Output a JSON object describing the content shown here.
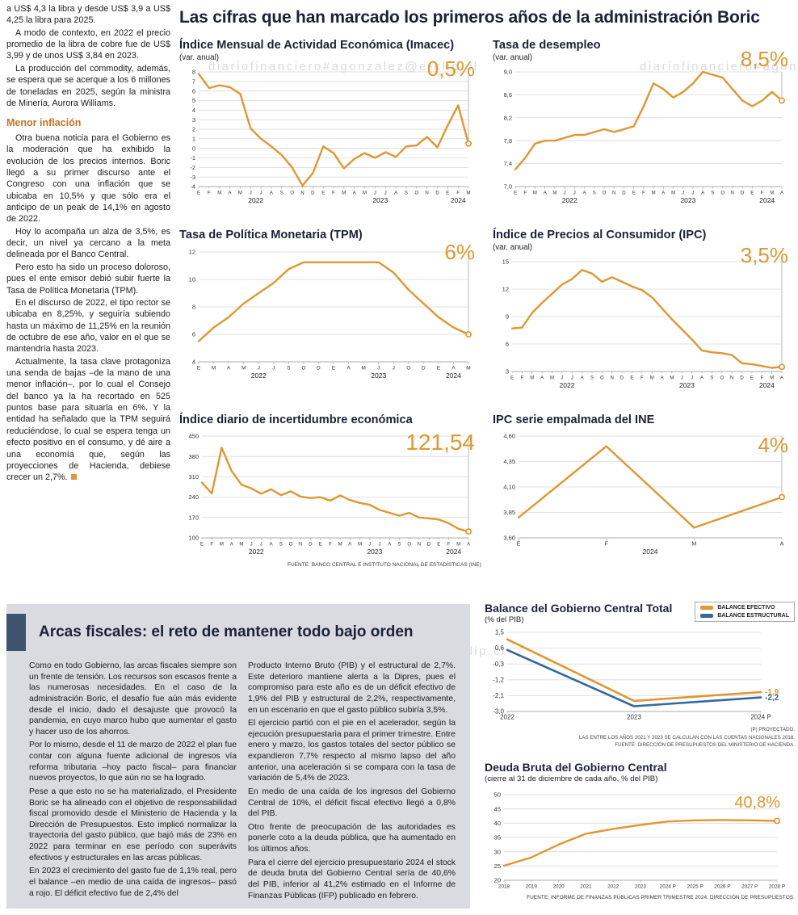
{
  "meta": {
    "watermark": "diariofinanciero#agonzalez@e-clip.cl"
  },
  "article": {
    "intro_paragraphs": [
      "a US$ 4,3 la libra y desde US$ 3,9 a US$ 4,25 la libra para 2025.",
      "A modo de contexto, en 2022 el precio promedio de la libra de cobre fue de US$ 3,99 y de unos US$ 3,84 en 2023.",
      "La producción del commodity, además, se espera que se acerque a los 6 millones de toneladas en 2025, según la ministra de Minería, Aurora Williams."
    ],
    "subhead": "Menor inflación",
    "body_paragraphs": [
      "Otra buena noticia para el Gobierno es la moderación que ha exhibido la evolución de los precios internos. Boric llegó a su primer discurso ante el Congreso con una inflación que se ubicaba en 10,5% y que sólo era el anticipo de un peak de 14,1% en agosto de 2022.",
      "Hoy lo acompaña un alza de 3,5%, es decir, un nivel ya cercano a la meta delineada por el Banco Central.",
      "Pero esto ha sido un proceso doloroso, pues el ente emisor debió subir fuerte la Tasa de Política Monetaria (TPM).",
      "En el discurso de 2022, el tipo rector se ubicaba en 8,25%, y seguiría subiendo hasta un máximo de 11,25% en la reunión de octubre de ese año, valor en el que se mantendría hasta 2023.",
      "Actualmente, la tasa clave protagoniza una senda de bajas –de la mano de una menor inflación–, por lo cual el Consejo del banco ya la ha recortado en 525 puntos base para situarla en 6%. Y la entidad ha señalado que la TPM seguirá reduciéndose, lo cual se espera tenga un efecto positivo en el consumo, y dé aire a una economía que, según las proyecciones de Hacienda, debiese crecer un 2,7%."
    ]
  },
  "main_title": "Las cifras que han marcado los primeros años de la administración Boric",
  "fiscal": {
    "title": "Arcas fiscales: el reto de mantener todo bajo orden",
    "col1": [
      "Como en todo Gobierno, las arcas fiscales siempre son un frente de tensión. Los recursos son escasos frente a las numerosas necesidades. En el caso de la administración Boric, el desafío fue aún más evidente desde el inicio, dado el desajuste que provocó la pandemia, en cuyo marco hubo que aumentar el gasto y hacer uso de los ahorros.",
      "Por lo mismo, desde el 11 de marzo de 2022 el plan fue contar con alguna fuente adicional de ingresos vía reforma tributaria –hoy pacto fiscal– para financiar nuevos proyectos, lo que aún no se ha logrado.",
      "Pese a que esto no se ha materializado, el Presidente Boric se ha alineado con el objetivo de responsabilidad fiscal promovido desde el Ministerio de Hacienda y la Dirección de Presupuestos. Esto implicó normalizar la trayectoria del gasto público, que bajó más de 23% en 2022 para terminar en ese período con superávits efectivos y estructurales en las arcas públicas.",
      "En 2023 el crecimiento del gasto fue de 1,1% real, pero el balance –en medio de una caída de ingresos– pasó a rojo. El déficit efectivo fue de 2,4% del"
    ],
    "col2": [
      "Producto Interno Bruto (PIB) y el estructural de 2,7%. Este deterioro mantiene alerta a la Dipres, pues el compromiso para este año es de un déficit efectivo de 1,9% del PIB y estructural de 2,2%, respectivamente, en un escenario en que el gasto público subiría 3,5%.",
      "El ejercicio partió con el pie en el acelerador, según la ejecución presupuestaria para el primer trimestre. Entre enero y marzo, los gastos totales del sector público se expandieron 7,7% respecto al mismo lapso del año anterior, una aceleración si se compara con la tasa de variación de 5,4% de 2023.",
      "En medio de una caída de los ingresos del Gobierno Central de 10%, el déficit fiscal efectivo llegó a 0,8% del PIB.",
      "Otro frente de preocupación de las autoridades es ponerle coto a la deuda pública, que ha aumentado en los últimos años.",
      "Para el cierre del ejercicio presupuestario 2024 el stock de deuda bruta del Gobierno Central sería de 40,6% del PIB, inferior al 41,2% estimado en el Informe de Finanzas Públicas (IFP) publicado en febrero."
    ]
  },
  "chart_data": [
    {
      "id": "imacec",
      "type": "line",
      "title": "Índice Mensual de Actividad Económica (Imacec)",
      "subtitle": "(var. anual)",
      "callout": "0,5%",
      "ylim": [
        -4,
        8
      ],
      "y_ticks": [
        {
          "v": 8,
          "label": "8"
        },
        {
          "v": 7,
          "label": "7"
        },
        {
          "v": 6,
          "label": "6"
        },
        {
          "v": 5,
          "label": "5"
        },
        {
          "v": 4,
          "label": "4"
        },
        {
          "v": 3,
          "label": "3"
        },
        {
          "v": 2,
          "label": "2"
        },
        {
          "v": 1,
          "label": "1"
        },
        {
          "v": 0,
          "label": "0"
        },
        {
          "v": -1,
          "label": "-1"
        },
        {
          "v": -2,
          "label": "-2"
        },
        {
          "v": -3,
          "label": "-3"
        },
        {
          "v": -4,
          "label": "-4"
        }
      ],
      "x_labels": [
        "E",
        "F",
        "M",
        "A",
        "M",
        "J",
        "J",
        "A",
        "S",
        "O",
        "N",
        "D",
        "E",
        "F",
        "M",
        "A",
        "M",
        "J",
        "J",
        "A",
        "S",
        "O",
        "N",
        "D",
        "E",
        "F",
        "M"
      ],
      "year_spans": [
        {
          "label": "2022",
          "from": 0,
          "to": 11
        },
        {
          "label": "2023",
          "from": 12,
          "to": 23
        },
        {
          "label": "2024",
          "from": 24,
          "to": 26
        }
      ],
      "series": [
        {
          "name": "Imacec",
          "color": "#E2962F",
          "values": [
            7.8,
            6.3,
            6.6,
            6.4,
            5.7,
            2.1,
            1.0,
            0.2,
            -0.7,
            -2.0,
            -3.9,
            -2.6,
            0.2,
            -0.5,
            -2.1,
            -1.1,
            -0.5,
            -1.0,
            -0.4,
            -0.9,
            0.2,
            0.3,
            1.2,
            0.1,
            2.4,
            4.5,
            0.5
          ]
        }
      ],
      "end_marker": true,
      "drop_line": true,
      "source": ""
    },
    {
      "id": "desempleo",
      "type": "line",
      "title": "Tasa de desempleo",
      "subtitle": "(var. anual)",
      "callout": "8,5%",
      "ylim": [
        7.0,
        9.0
      ],
      "y_ticks": [
        {
          "v": 9.0,
          "label": "9,0"
        },
        {
          "v": 8.6,
          "label": "8,6"
        },
        {
          "v": 8.2,
          "label": "8,2"
        },
        {
          "v": 7.8,
          "label": "7,8"
        },
        {
          "v": 7.4,
          "label": "7,4"
        },
        {
          "v": 7.0,
          "label": "7,0"
        }
      ],
      "x_labels": [
        "E",
        "F",
        "M",
        "A",
        "M",
        "J",
        "J",
        "A",
        "S",
        "O",
        "N",
        "D",
        "E",
        "F",
        "M",
        "A",
        "M",
        "J",
        "J",
        "A",
        "S",
        "O",
        "N",
        "D",
        "E",
        "F",
        "M",
        "A"
      ],
      "year_spans": [
        {
          "label": "2022",
          "from": 0,
          "to": 11
        },
        {
          "label": "2023",
          "from": 12,
          "to": 23
        },
        {
          "label": "2024",
          "from": 24,
          "to": 27
        }
      ],
      "series": [
        {
          "name": "Tasa de desempleo",
          "color": "#E2962F",
          "values": [
            7.3,
            7.5,
            7.75,
            7.8,
            7.8,
            7.85,
            7.9,
            7.9,
            7.95,
            8.0,
            7.95,
            8.0,
            8.05,
            8.4,
            8.8,
            8.7,
            8.55,
            8.65,
            8.8,
            9.0,
            8.95,
            8.9,
            8.7,
            8.5,
            8.4,
            8.5,
            8.65,
            8.5
          ]
        }
      ],
      "end_marker": true,
      "drop_line": true,
      "source": ""
    },
    {
      "id": "tpm",
      "type": "line",
      "title": "Tasa de Política Monetaria (TPM)",
      "subtitle": "",
      "callout": "6%",
      "ylim": [
        4,
        12
      ],
      "y_ticks": [
        {
          "v": 12,
          "label": "12"
        },
        {
          "v": 10,
          "label": "10"
        },
        {
          "v": 8,
          "label": "8"
        },
        {
          "v": 6,
          "label": "6"
        },
        {
          "v": 4,
          "label": "4"
        }
      ],
      "x_labels": [
        "E",
        "M",
        "A",
        "M",
        "J",
        "J",
        "S",
        "O",
        "D",
        "E",
        "A",
        "M",
        "J",
        "J",
        "O",
        "D",
        "E",
        "A",
        "M"
      ],
      "year_spans": [
        {
          "label": "2022",
          "from": 0,
          "to": 8
        },
        {
          "label": "2023",
          "from": 9,
          "to": 15
        },
        {
          "label": "2024",
          "from": 16,
          "to": 18
        }
      ],
      "series": [
        {
          "name": "TPM",
          "color": "#E2962F",
          "values": [
            5.5,
            6.5,
            7.25,
            8.25,
            9.0,
            9.75,
            10.75,
            11.25,
            11.25,
            11.25,
            11.25,
            11.25,
            11.25,
            10.5,
            9.25,
            8.25,
            7.25,
            6.5,
            6.0
          ]
        }
      ],
      "end_marker": true,
      "drop_line": true,
      "source": ""
    },
    {
      "id": "ipc",
      "type": "line",
      "title": "Índice de Precios al Consumidor (IPC)",
      "subtitle": "(var. anual)",
      "callout": "3,5%",
      "ylim": [
        3,
        15
      ],
      "y_ticks": [
        {
          "v": 15,
          "label": "15"
        },
        {
          "v": 12,
          "label": "12"
        },
        {
          "v": 9,
          "label": "9"
        },
        {
          "v": 6,
          "label": "6"
        },
        {
          "v": 3,
          "label": "3"
        }
      ],
      "x_labels": [
        "E",
        "F",
        "M",
        "A",
        "M",
        "J",
        "J",
        "A",
        "S",
        "O",
        "N",
        "D",
        "E",
        "F",
        "M",
        "A",
        "M",
        "J",
        "J",
        "A",
        "S",
        "O",
        "N",
        "D",
        "E",
        "F",
        "M",
        "A"
      ],
      "year_spans": [
        {
          "label": "2022",
          "from": 0,
          "to": 11
        },
        {
          "label": "2023",
          "from": 12,
          "to": 23
        },
        {
          "label": "2024",
          "from": 24,
          "to": 27
        }
      ],
      "series": [
        {
          "name": "IPC",
          "color": "#E2962F",
          "values": [
            7.7,
            7.8,
            9.4,
            10.5,
            11.5,
            12.5,
            13.1,
            14.1,
            13.7,
            12.8,
            13.3,
            12.8,
            12.3,
            11.9,
            11.1,
            9.9,
            8.7,
            7.6,
            6.5,
            5.3,
            5.1,
            5.0,
            4.8,
            3.9,
            3.8,
            3.6,
            3.4,
            3.5
          ]
        }
      ],
      "end_marker": true,
      "drop_line": true,
      "source": ""
    },
    {
      "id": "incertidumbre",
      "type": "line",
      "title": "Índice diario de incertidumbre económica",
      "subtitle": "",
      "callout": "121,54",
      "ylim": [
        100,
        450
      ],
      "y_ticks": [
        {
          "v": 450,
          "label": "450"
        },
        {
          "v": 380,
          "label": "380"
        },
        {
          "v": 310,
          "label": "310"
        },
        {
          "v": 240,
          "label": "240"
        },
        {
          "v": 170,
          "label": "170"
        },
        {
          "v": 100,
          "label": "100"
        }
      ],
      "x_labels": [
        "E",
        "F",
        "M",
        "A",
        "M",
        "J",
        "J",
        "A",
        "S",
        "O",
        "N",
        "D",
        "E",
        "F",
        "M",
        "A",
        "M",
        "J",
        "J",
        "A",
        "S",
        "O",
        "N",
        "D",
        "E",
        "F",
        "M",
        "A"
      ],
      "year_spans": [
        {
          "label": "2022",
          "from": 0,
          "to": 11
        },
        {
          "label": "2023",
          "from": 12,
          "to": 23
        },
        {
          "label": "2024",
          "from": 24,
          "to": 27
        }
      ],
      "series": [
        {
          "name": "Incertidumbre económica",
          "color": "#E2962F",
          "values": [
            290,
            253,
            410,
            330,
            283,
            270,
            252,
            267,
            247,
            260,
            242,
            237,
            240,
            228,
            246,
            230,
            220,
            214,
            196,
            186,
            176,
            186,
            170,
            167,
            163,
            150,
            131,
            121.54
          ]
        }
      ],
      "end_marker": true,
      "drop_line": true,
      "source": "FUENTE: BANCO CENTRAL E INSTITUTO NACIONAL DE ESTADÍSTICAS (INE)"
    },
    {
      "id": "ipc_ine",
      "type": "line",
      "title": "IPC serie empalmada del INE",
      "subtitle": "",
      "callout": "4%",
      "ylim": [
        3.6,
        4.6
      ],
      "y_ticks": [
        {
          "v": 4.6,
          "label": "4,60"
        },
        {
          "v": 4.35,
          "label": "4,35"
        },
        {
          "v": 4.1,
          "label": "4,10"
        },
        {
          "v": 3.85,
          "label": "3,85"
        },
        {
          "v": 3.6,
          "label": "3,60"
        }
      ],
      "x_labels": [
        "E",
        "F",
        "M",
        "A"
      ],
      "year_spans": [
        {
          "label": "2024",
          "from": 0,
          "to": 3
        }
      ],
      "series": [
        {
          "name": "IPC serie empalmada",
          "color": "#E2962F",
          "values": [
            3.8,
            4.5,
            3.7,
            4.0
          ]
        }
      ],
      "end_marker": true,
      "drop_line": true,
      "source": ""
    },
    {
      "id": "balance",
      "type": "line",
      "title": "Balance del Gobierno Central Total",
      "subtitle": "(% del PIB)",
      "callout": "",
      "ylim": [
        -3.0,
        1.5
      ],
      "y_ticks": [
        {
          "v": 1.5,
          "label": "1,5"
        },
        {
          "v": 0.6,
          "label": "0,6"
        },
        {
          "v": -0.3,
          "label": "-0,3"
        },
        {
          "v": -1.2,
          "label": "-1,2"
        },
        {
          "v": -2.1,
          "label": "-2,1"
        },
        {
          "v": -3.0,
          "label": "-3,0"
        }
      ],
      "x_labels": [
        "2022",
        "2023",
        "2024 P"
      ],
      "year_spans": [],
      "series": [
        {
          "name": "Balance efectivo",
          "color": "#E2962F",
          "values": [
            1.1,
            -2.4,
            -1.9
          ]
        },
        {
          "name": "Balance estructural",
          "color": "#33699E",
          "values": [
            0.5,
            -2.7,
            -2.2
          ]
        }
      ],
      "end_labels": [
        {
          "text": "-1,9",
          "color": "#E2962F"
        },
        {
          "text": "-2,2",
          "color": "#33699E"
        }
      ],
      "legend": [
        {
          "label": "BALANCE EFECTIVO",
          "color": "#E2962F"
        },
        {
          "label": "BALANCE ESTRUCTURAL",
          "color": "#33699E"
        }
      ],
      "end_marker": false,
      "drop_line": false,
      "footnotes": [
        "(P) PROYECTADO.",
        "LAS ENTRE LOS AÑOS 2021 Y 2023 SE CALCULAN CON LAS CUENTAS NACIONALES 2018.",
        "FUENTE: DIRECCIÓN DE PRESUPUESTOS DEL MINISTERIO DE HACIENDA."
      ],
      "source": ""
    },
    {
      "id": "deuda",
      "type": "line",
      "title": "Deuda Bruta del Gobierno Central",
      "subtitle": "(cierre al 31 de diciembre de cada año, % del PIB)",
      "callout": "40,8%",
      "ylim": [
        20,
        50
      ],
      "y_ticks": [
        {
          "v": 50,
          "label": "50"
        },
        {
          "v": 45,
          "label": "45"
        },
        {
          "v": 40,
          "label": "40"
        },
        {
          "v": 35,
          "label": "35"
        },
        {
          "v": 30,
          "label": "30"
        },
        {
          "v": 25,
          "label": "25"
        },
        {
          "v": 20,
          "label": "20"
        }
      ],
      "x_labels": [
        "2018",
        "2019",
        "2020",
        "2021",
        "2022",
        "2023",
        "2024 P",
        "2025 P",
        "2026 P",
        "2027 P",
        "2028 P"
      ],
      "year_spans": [],
      "series": [
        {
          "name": "Deuda bruta",
          "color": "#E2962F",
          "values": [
            25.1,
            28.0,
            32.5,
            36.3,
            38.0,
            39.4,
            40.6,
            41.0,
            41.1,
            41.0,
            40.8
          ]
        }
      ],
      "end_marker": true,
      "drop_line": false,
      "source": "FUENTE: INFORME DE FINANZAS PÚBLICAS PRIMER TRIMESTRE 2024, DIRECCIÓN DE PRESUPUESTOS."
    }
  ]
}
